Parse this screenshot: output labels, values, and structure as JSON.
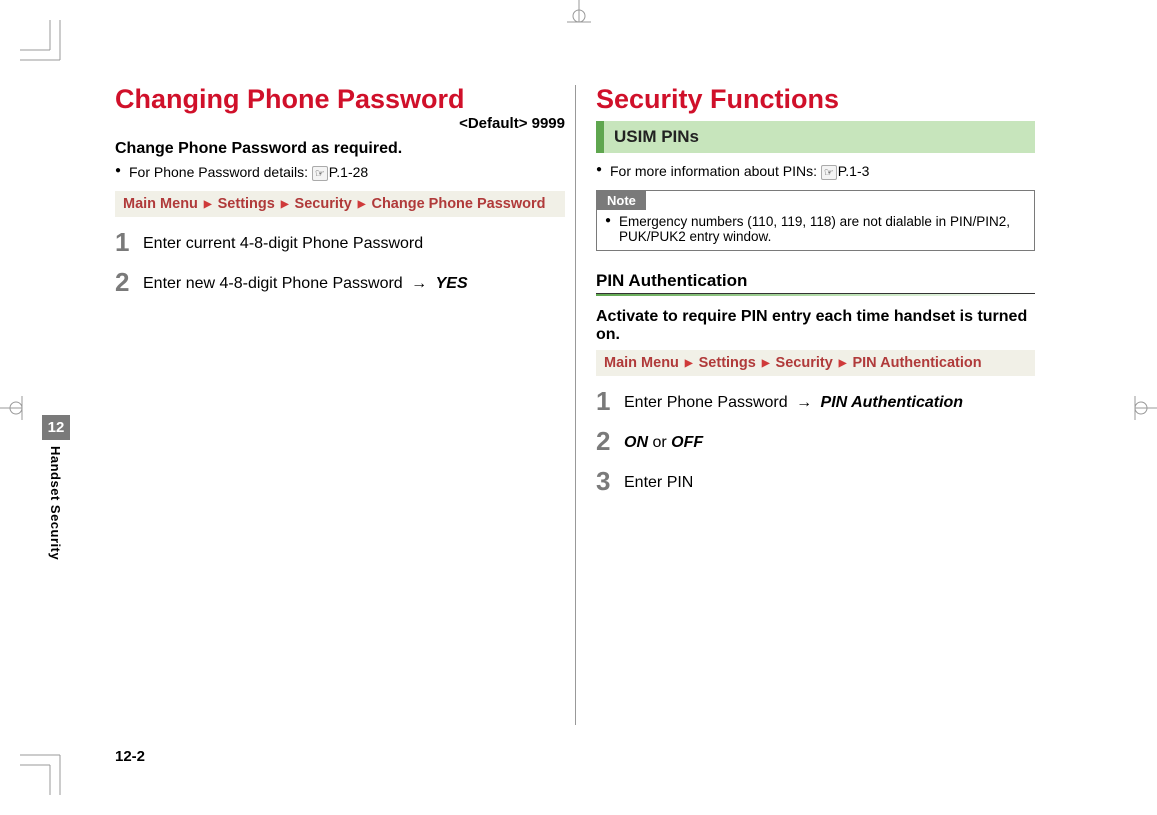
{
  "colors": {
    "red": "#d0102a",
    "green_dark": "#5fa64f",
    "green_light": "#c7e5bc",
    "gray_tab": "#7a7a7a",
    "breadcrumb_bg": "#f1f0e7",
    "breadcrumb_text": "#b03a3a",
    "triangle": "#cf3a3a"
  },
  "side_tab": {
    "chapter": "12",
    "label": "Handset Security"
  },
  "page_number": "12-2",
  "left": {
    "title": "Changing Phone Password",
    "default_tag": "<Default> 9999",
    "intro_bold": "Change Phone Password as required.",
    "bullet_prefix": "For Phone Password details: ",
    "bullet_ref": "P.1-28",
    "breadcrumb": [
      "Main Menu",
      "Settings",
      "Security",
      "Change Phone Password"
    ],
    "steps": [
      {
        "num": "1",
        "text": "Enter current 4-8-digit Phone Password"
      },
      {
        "num": "2",
        "text": "Enter new 4-8-digit Phone Password",
        "arrow_then": "YES"
      }
    ]
  },
  "right": {
    "title": "Security Functions",
    "green_bar": "USIM PINs",
    "bullet_prefix": "For more information about PINs: ",
    "bullet_ref": "P.1-3",
    "note_title": "Note",
    "note_body": "Emergency numbers (110, 119, 118) are not dialable in PIN/PIN2, PUK/PUK2 entry window.",
    "sub_heading": "PIN Authentication",
    "sub_intro": "Activate to require PIN entry each time handset is turned on.",
    "breadcrumb": [
      "Main Menu",
      "Settings",
      "Security",
      "PIN Authentication"
    ],
    "steps": [
      {
        "num": "1",
        "text": "Enter Phone Password",
        "arrow_then_ital": "PIN Authentication"
      },
      {
        "num": "2",
        "ital_a": "ON",
        "mid": " or ",
        "ital_b": "OFF"
      },
      {
        "num": "3",
        "text": "Enter PIN"
      }
    ]
  }
}
